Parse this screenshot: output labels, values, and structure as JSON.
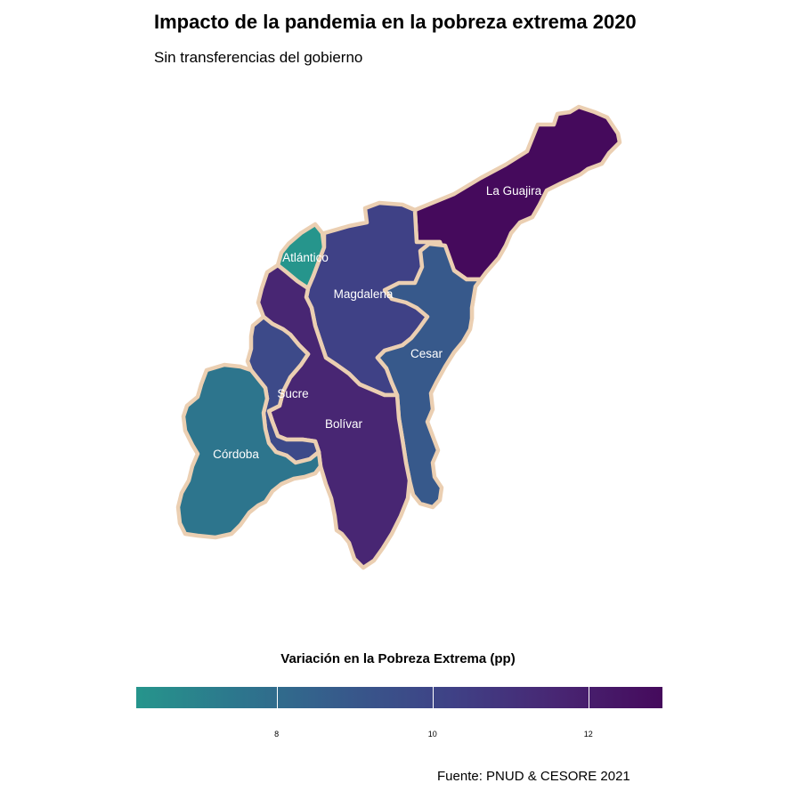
{
  "title": "Impacto de la pandemia en la pobreza extrema 2020",
  "subtitle": "Sin transferencias del gobierno",
  "caption": "Fuente: PNUD & CESORE 2021",
  "border_color": "#EBCFB2",
  "regions": [
    {
      "name": "La Guajira",
      "value": 12.9,
      "color": "#450A5C"
    },
    {
      "name": "Atlántico",
      "value": 6.6,
      "color": "#26958C"
    },
    {
      "name": "Magdalena",
      "value": 10.5,
      "color": "#3F4186"
    },
    {
      "name": "Cesar",
      "value": 8.9,
      "color": "#37598B"
    },
    {
      "name": "Bolívar",
      "value": 11.8,
      "color": "#482673"
    },
    {
      "name": "Sucre",
      "value": 10.2,
      "color": "#3D4A89"
    },
    {
      "name": "Córdoba",
      "value": 7.5,
      "color": "#2D758D"
    }
  ],
  "legend": {
    "title": "Variación en la Pobreza Extrema (pp)",
    "min": 6.2,
    "max": 12.95,
    "ticks": [
      8,
      10,
      12
    ],
    "tick_labels": [
      "8",
      "10",
      "12"
    ],
    "gradient": [
      "#26958C",
      "#2D758D",
      "#37598B",
      "#3F4186",
      "#482673",
      "#450A5C"
    ]
  }
}
